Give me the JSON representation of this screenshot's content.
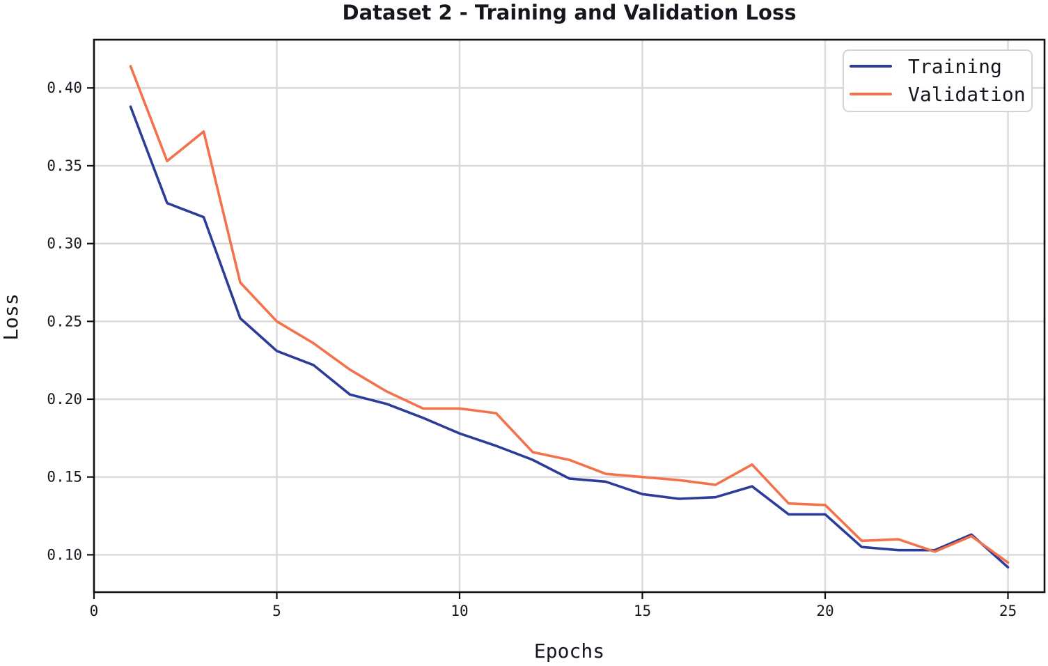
{
  "chart_data": {
    "type": "line",
    "title": "Dataset 2 - Training and Validation Loss",
    "xlabel": "Epochs",
    "ylabel": "Loss",
    "x": [
      1,
      2,
      3,
      4,
      5,
      6,
      7,
      8,
      9,
      10,
      11,
      12,
      13,
      14,
      15,
      16,
      17,
      18,
      19,
      20,
      21,
      22,
      23,
      24,
      25
    ],
    "series": [
      {
        "name": "Training",
        "color": "#2e3c99",
        "values": [
          0.388,
          0.326,
          0.317,
          0.252,
          0.231,
          0.222,
          0.203,
          0.197,
          0.188,
          0.178,
          0.17,
          0.161,
          0.149,
          0.147,
          0.139,
          0.136,
          0.137,
          0.144,
          0.126,
          0.126,
          0.105,
          0.103,
          0.103,
          0.113,
          0.092
        ]
      },
      {
        "name": "Validation",
        "color": "#f3724b",
        "values": [
          0.414,
          0.353,
          0.372,
          0.275,
          0.25,
          0.236,
          0.219,
          0.205,
          0.194,
          0.194,
          0.191,
          0.166,
          0.161,
          0.152,
          0.15,
          0.148,
          0.145,
          0.158,
          0.133,
          0.132,
          0.109,
          0.11,
          0.102,
          0.112,
          0.095
        ]
      }
    ],
    "xlim": [
      0,
      26
    ],
    "ylim": [
      0.076,
      0.431
    ],
    "xticks": [
      0,
      5,
      10,
      15,
      20,
      25
    ],
    "xtick_labels": [
      "0",
      "5",
      "10",
      "15",
      "20",
      "25"
    ],
    "yticks": [
      0.1,
      0.15,
      0.2,
      0.25,
      0.3,
      0.35,
      0.4
    ],
    "ytick_labels": [
      "0.10",
      "0.15",
      "0.20",
      "0.25",
      "0.30",
      "0.35",
      "0.40"
    ],
    "grid": true,
    "legend_position": "upper right"
  }
}
